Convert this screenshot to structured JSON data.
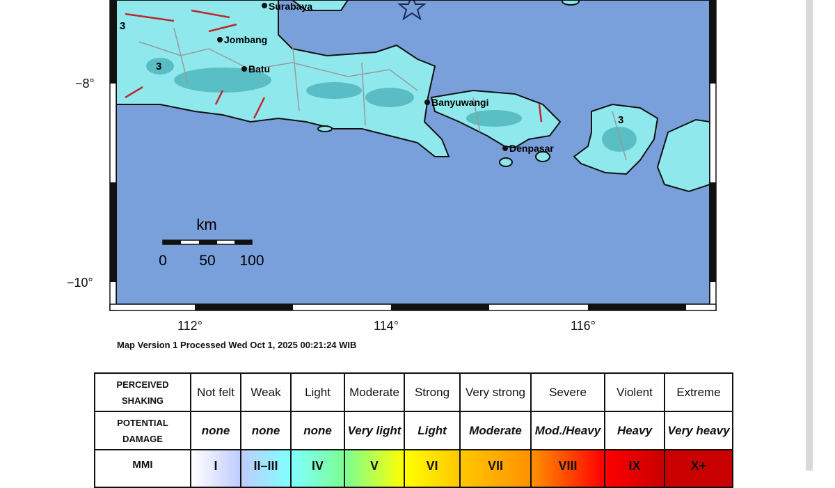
{
  "map": {
    "cities": [
      {
        "name": "Surabaya"
      },
      {
        "name": "Jombang"
      },
      {
        "name": "Batu"
      },
      {
        "name": "Banyuwangi"
      },
      {
        "name": "Denpasar"
      }
    ],
    "contour_labels": [
      "3",
      "3",
      "3"
    ],
    "epicenter_icon": "star-icon",
    "lon_ticks": [
      "112°",
      "114°",
      "116°"
    ],
    "lat_ticks": [
      "−8°",
      "−10°"
    ],
    "scale": {
      "unit": "km",
      "ticks": [
        "0",
        "50",
        "100"
      ]
    },
    "version_text": "Map Version 1 Processed Wed Oct  1, 2025 00:21:24 WIB",
    "colors": {
      "sea": "#7aa0dc",
      "land": "#8fe8ec",
      "faults": "#c0262b"
    }
  },
  "legend": {
    "row_labels": [
      [
        "PERCEIVED",
        "SHAKING"
      ],
      [
        "POTENTIAL",
        "DAMAGE"
      ],
      [
        "MMI"
      ]
    ],
    "shaking": [
      "Not felt",
      "Weak",
      "Light",
      "Moderate",
      "Strong",
      "Very strong",
      "Severe",
      "Violent",
      "Extreme"
    ],
    "damage": [
      "none",
      "none",
      "none",
      "Very light",
      "Light",
      "Moderate",
      "Mod./Heavy",
      "Heavy",
      "Very heavy"
    ],
    "mmi": [
      "I",
      "II–III",
      "IV",
      "V",
      "VI",
      "VII",
      "VIII",
      "IX",
      "X+"
    ],
    "mmi_colors": [
      "#ffffff",
      "#bfccff",
      "#80ffff",
      "#7aff93",
      "#ffff00",
      "#ffc800",
      "#ff9100",
      "#ff0000",
      "#c80000"
    ]
  }
}
